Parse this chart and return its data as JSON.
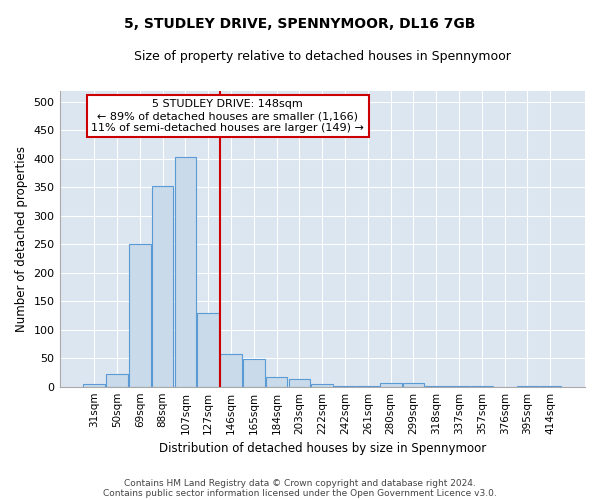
{
  "title": "5, STUDLEY DRIVE, SPENNYMOOR, DL16 7GB",
  "subtitle": "Size of property relative to detached houses in Spennymoor",
  "xlabel": "Distribution of detached houses by size in Spennymoor",
  "ylabel": "Number of detached properties",
  "footnote1": "Contains HM Land Registry data © Crown copyright and database right 2024.",
  "footnote2": "Contains public sector information licensed under the Open Government Licence v3.0.",
  "categories": [
    "31sqm",
    "50sqm",
    "69sqm",
    "88sqm",
    "107sqm",
    "127sqm",
    "146sqm",
    "165sqm",
    "184sqm",
    "203sqm",
    "222sqm",
    "242sqm",
    "261sqm",
    "280sqm",
    "299sqm",
    "318sqm",
    "337sqm",
    "357sqm",
    "376sqm",
    "395sqm",
    "414sqm"
  ],
  "values": [
    5,
    22,
    250,
    353,
    403,
    130,
    57,
    49,
    17,
    13,
    4,
    2,
    1,
    7,
    6,
    1,
    2,
    1,
    0,
    1,
    2
  ],
  "bar_color": "#c9daea",
  "bar_edge_color": "#5b9bd5",
  "marker_index": 5,
  "marker_label": "5 STUDLEY DRIVE: 148sqm",
  "annotation_line1": "← 89% of detached houses are smaller (1,166)",
  "annotation_line2": "11% of semi-detached houses are larger (149) →",
  "marker_color": "#cc0000",
  "fig_bg_color": "#ffffff",
  "plot_bg_color": "#dce6f1",
  "ylim": [
    0,
    520
  ],
  "yticks": [
    0,
    50,
    100,
    150,
    200,
    250,
    300,
    350,
    400,
    450,
    500
  ]
}
